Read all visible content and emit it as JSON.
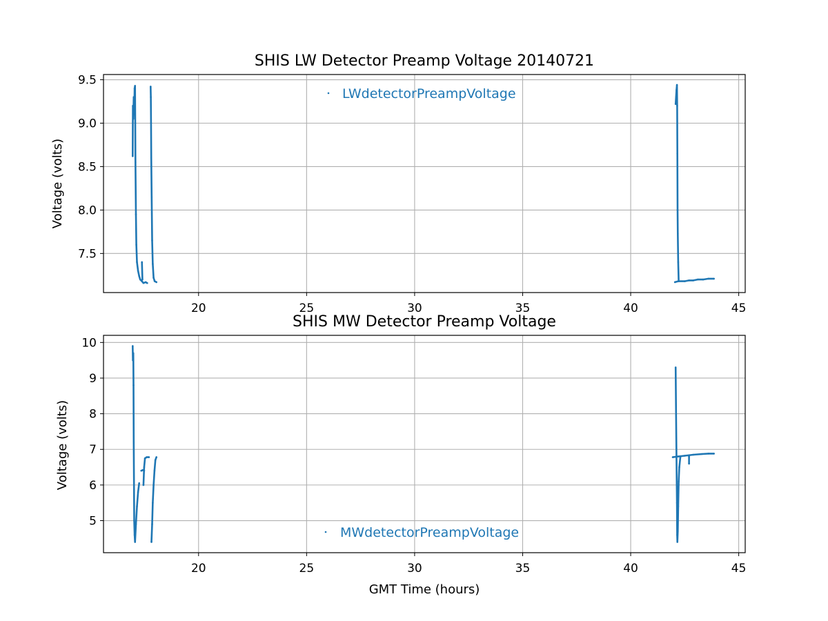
{
  "colors": {
    "series": "#1f77b4",
    "grid": "#b0b0b0",
    "axes": "#000000",
    "background": "#ffffff"
  },
  "chart_data": [
    {
      "type": "scatter",
      "title": "SHIS LW Detector Preamp Voltage 20140721",
      "xlabel": "",
      "ylabel": "Voltage (volts)",
      "xlim": [
        15.6,
        45.3
      ],
      "ylim": [
        7.05,
        9.56
      ],
      "xticks": [
        20,
        25,
        30,
        35,
        40,
        45
      ],
      "yticks": [
        7.5,
        8.0,
        8.5,
        9.0,
        9.5
      ],
      "xtick_labels": [
        "20",
        "25",
        "30",
        "35",
        "40",
        "45"
      ],
      "ytick_labels": [
        "7.5",
        "8.0",
        "8.5",
        "9.0",
        "9.5"
      ],
      "grid": true,
      "legend": {
        "placement": "upper-center",
        "entries": [
          "LWdetectorPreampVoltage"
        ]
      },
      "series": [
        {
          "name": "LWdetectorPreampVoltage",
          "marker": "point",
          "segments": [
            [
              [
                16.95,
                8.62
              ],
              [
                16.96,
                9.2
              ],
              [
                16.98,
                9.05
              ],
              [
                17.0,
                9.3
              ],
              [
                17.02,
                9.1
              ],
              [
                17.04,
                9.4
              ],
              [
                17.06,
                9.43
              ],
              [
                17.07,
                9.0
              ],
              [
                17.08,
                8.55
              ],
              [
                17.1,
                7.95
              ],
              [
                17.12,
                7.6
              ],
              [
                17.15,
                7.4
              ],
              [
                17.2,
                7.3
              ],
              [
                17.25,
                7.24
              ],
              [
                17.3,
                7.2
              ],
              [
                17.38,
                7.18
              ],
              [
                17.45,
                7.16
              ],
              [
                17.55,
                7.17
              ],
              [
                17.62,
                7.16
              ]
            ],
            [
              [
                17.38,
                7.4
              ],
              [
                17.4,
                7.2
              ]
            ],
            [
              [
                17.78,
                9.42
              ],
              [
                17.79,
                9.3
              ],
              [
                17.8,
                9.0
              ],
              [
                17.81,
                8.6
              ],
              [
                17.83,
                8.15
              ],
              [
                17.85,
                7.65
              ],
              [
                17.88,
                7.38
              ],
              [
                17.92,
                7.22
              ],
              [
                17.97,
                7.18
              ],
              [
                18.05,
                7.17
              ]
            ],
            [
              [
                42.05,
                7.17
              ],
              [
                42.2,
                7.18
              ],
              [
                42.5,
                7.18
              ],
              [
                42.7,
                7.19
              ],
              [
                42.9,
                7.19
              ],
              [
                43.1,
                7.2
              ],
              [
                43.35,
                7.2
              ],
              [
                43.6,
                7.21
              ],
              [
                43.85,
                7.21
              ]
            ],
            [
              [
                42.08,
                9.22
              ],
              [
                42.1,
                9.3
              ],
              [
                42.12,
                9.38
              ],
              [
                42.14,
                9.44
              ],
              [
                42.15,
                9.2
              ],
              [
                42.16,
                8.65
              ],
              [
                42.17,
                8.0
              ],
              [
                42.18,
                7.73
              ],
              [
                42.2,
                7.4
              ],
              [
                42.22,
                7.18
              ]
            ]
          ]
        }
      ]
    },
    {
      "type": "scatter",
      "title": "SHIS MW Detector Preamp Voltage",
      "xlabel": "GMT Time (hours)",
      "ylabel": "Voltage (volts)",
      "xlim": [
        15.6,
        45.3
      ],
      "ylim": [
        4.1,
        10.2
      ],
      "xticks": [
        20,
        25,
        30,
        35,
        40,
        45
      ],
      "yticks": [
        5,
        6,
        7,
        8,
        9,
        10
      ],
      "xtick_labels": [
        "20",
        "25",
        "30",
        "35",
        "40",
        "45"
      ],
      "ytick_labels": [
        "5",
        "6",
        "7",
        "8",
        "9",
        "10"
      ],
      "grid": true,
      "legend": {
        "placement": "lower-center",
        "entries": [
          "MWdetectorPreampVoltage"
        ]
      },
      "series": [
        {
          "name": "MWdetectorPreampVoltage",
          "marker": "point",
          "segments": [
            [
              [
                16.95,
                9.9
              ],
              [
                16.96,
                9.5
              ],
              [
                16.98,
                9.7
              ],
              [
                16.99,
                8.8
              ],
              [
                17.0,
                7.2
              ],
              [
                17.01,
                6.0
              ],
              [
                17.02,
                5.0
              ],
              [
                17.04,
                4.6
              ],
              [
                17.06,
                4.4
              ],
              [
                17.1,
                4.9
              ],
              [
                17.15,
                5.4
              ],
              [
                17.2,
                5.8
              ],
              [
                17.25,
                6.05
              ]
            ],
            [
              [
                17.35,
                6.4
              ],
              [
                17.42,
                6.42
              ],
              [
                17.48,
                6.4
              ]
            ],
            [
              [
                17.45,
                6.0
              ],
              [
                17.48,
                6.5
              ],
              [
                17.52,
                6.75
              ],
              [
                17.6,
                6.78
              ],
              [
                17.7,
                6.78
              ]
            ],
            [
              [
                17.82,
                4.4
              ],
              [
                17.85,
                4.9
              ],
              [
                17.88,
                5.5
              ],
              [
                17.92,
                6.0
              ],
              [
                17.96,
                6.4
              ],
              [
                18.0,
                6.7
              ],
              [
                18.05,
                6.78
              ]
            ],
            [
              [
                41.95,
                6.78
              ],
              [
                42.2,
                6.8
              ],
              [
                42.5,
                6.82
              ],
              [
                42.9,
                6.85
              ],
              [
                43.3,
                6.87
              ],
              [
                43.6,
                6.88
              ],
              [
                43.85,
                6.88
              ]
            ],
            [
              [
                42.08,
                9.3
              ],
              [
                42.1,
                8.0
              ],
              [
                42.12,
                6.8
              ],
              [
                42.14,
                5.5
              ],
              [
                42.15,
                4.6
              ],
              [
                42.16,
                4.4
              ],
              [
                42.18,
                4.7
              ],
              [
                42.2,
                5.4
              ],
              [
                42.22,
                6.1
              ],
              [
                42.25,
                6.5
              ],
              [
                42.3,
                6.8
              ]
            ],
            [
              [
                42.7,
                6.6
              ],
              [
                42.7,
                6.8
              ]
            ]
          ]
        }
      ]
    }
  ]
}
